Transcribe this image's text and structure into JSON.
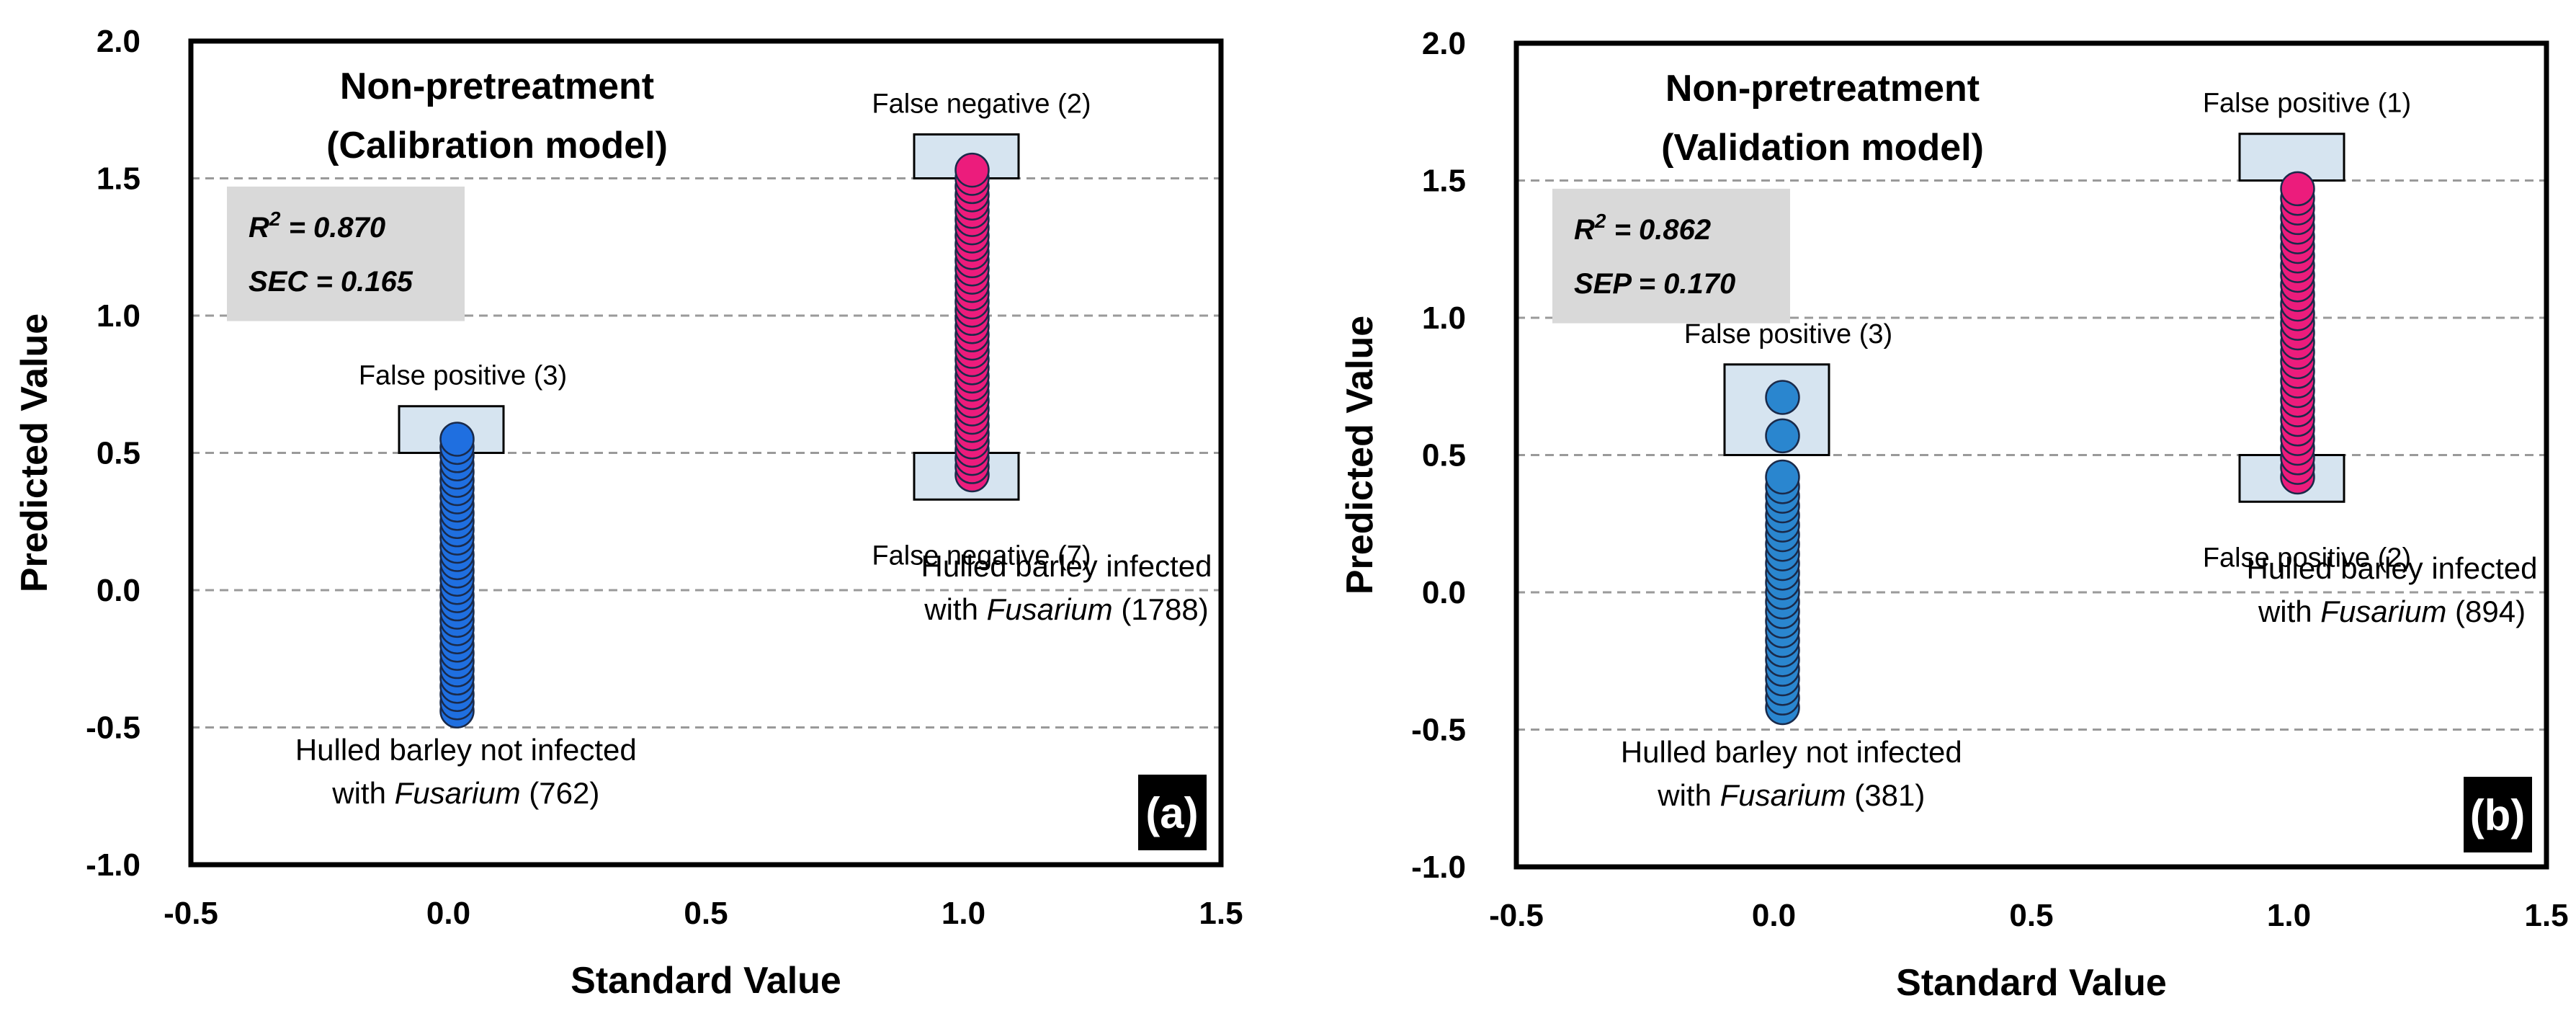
{
  "colors": {
    "blue_fill": "#1f6fe0",
    "blue_fill_b": "#2a86cf",
    "pink_fill": "#ec1c7c",
    "marker_edge": "#1a2a4a",
    "box_fill": "#d6e4f0",
    "stat_box": "#d9d9d9",
    "grid": "#9a9a9a"
  },
  "chart_data": [
    {
      "type": "scatter",
      "panel_label": "(a)",
      "title_line1": "Non-pretreatment",
      "title_line2": "(Calibration model)",
      "xlabel": "Standard Value",
      "ylabel": "Predicted Value",
      "xlim": [
        -0.5,
        1.5
      ],
      "ylim": [
        -1.0,
        2.0
      ],
      "x_ticks": [
        "-0.5",
        "0.0",
        "0.5",
        "1.0",
        "1.5"
      ],
      "y_ticks": [
        "-1.0",
        "-0.5",
        "0.0",
        "0.5",
        "1.0",
        "1.5",
        "2.0"
      ],
      "gridlines_y": [
        -0.5,
        0.0,
        0.5,
        1.0,
        1.5
      ],
      "stats": {
        "r2_label": "R",
        "r2_sup": "2",
        "r2_value": " =  0.870",
        "err_line": "SEC = 0.165"
      },
      "series": [
        {
          "name": "not infected",
          "x": 0.0,
          "ymin": -0.44,
          "ymax": 0.55,
          "step": 0.03,
          "color": "blue"
        },
        {
          "name": "infected",
          "x": 1.0,
          "ymin": 0.42,
          "ymax": 1.53,
          "step": 0.03,
          "color": "pink"
        }
      ],
      "error_boxes": [
        {
          "x": 0.0,
          "y0": 0.5,
          "y1": 0.67,
          "label": "False positive (3)",
          "label_pos": "above"
        },
        {
          "x": 1.0,
          "y0": 1.5,
          "y1": 1.66,
          "label": "False negative (2)",
          "label_pos": "above"
        },
        {
          "x": 1.0,
          "y0": 0.33,
          "y1": 0.5,
          "label": "False negative (7)",
          "label_pos": "below"
        }
      ],
      "group_labels": [
        {
          "line1": "Hulled barley not infected",
          "line2_pre": "with ",
          "line2_italic": "Fusarium",
          "line2_post": " (762)",
          "anchor_x": 0.02,
          "y_top": -0.62
        },
        {
          "line1": "Hulled barley infected",
          "line2_pre": "with ",
          "line2_italic": "Fusarium",
          "line2_post": " (1788)",
          "anchor_x": 1.2,
          "y_top": 0.05
        }
      ]
    },
    {
      "type": "scatter",
      "panel_label": "(b)",
      "title_line1": "Non-pretreatment",
      "title_line2": "(Validation model)",
      "xlabel": "Standard Value",
      "ylabel": "Predicted Value",
      "xlim": [
        -0.5,
        1.5
      ],
      "ylim": [
        -1.0,
        2.0
      ],
      "x_ticks": [
        "-0.5",
        "0.0",
        "0.5",
        "1.0",
        "1.5"
      ],
      "y_ticks": [
        "-1.0",
        "-0.5",
        "0.0",
        "0.5",
        "1.0",
        "1.5",
        "2.0"
      ],
      "gridlines_y": [
        -0.5,
        0.0,
        0.5,
        1.0,
        1.5
      ],
      "stats": {
        "r2_label": "R",
        "r2_sup": "2",
        "r2_value": " =  0.862",
        "err_line": "SEP = 0.170"
      },
      "series": [
        {
          "name": "not infected",
          "x": 0.0,
          "ymin": -0.42,
          "ymax": 0.42,
          "step": 0.035,
          "color": "blue_b",
          "extra_y": [
            0.57,
            0.71
          ]
        },
        {
          "name": "infected",
          "x": 1.0,
          "ymin": 0.42,
          "ymax": 1.49,
          "step": 0.035,
          "color": "pink"
        }
      ],
      "error_boxes": [
        {
          "x": 0.0,
          "y0": 0.5,
          "y1": 0.83,
          "label": "False positive (3)",
          "label_pos": "above"
        },
        {
          "x": 1.0,
          "y0": 1.5,
          "y1": 1.67,
          "label": "False positive (1)",
          "label_pos": "above"
        },
        {
          "x": 1.0,
          "y0": 0.33,
          "y1": 0.5,
          "label": "False positive (2)",
          "label_pos": "below"
        }
      ],
      "group_labels": [
        {
          "line1": "Hulled barley not infected",
          "line2_pre": "with ",
          "line2_italic": "Fusarium",
          "line2_post": " (381)",
          "anchor_x": 0.02,
          "y_top": -0.62
        },
        {
          "line1": "Hulled barley infected",
          "line2_pre": "with ",
          "line2_italic": "Fusarium",
          "line2_post": " (894)",
          "anchor_x": 1.2,
          "y_top": 0.05
        }
      ]
    }
  ]
}
